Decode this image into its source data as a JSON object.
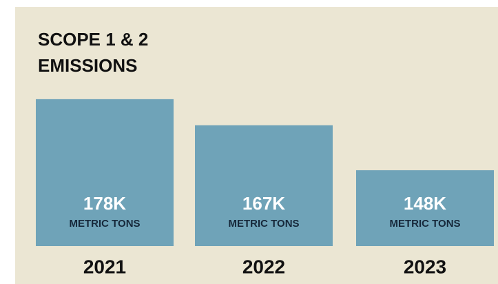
{
  "chart_data": {
    "type": "bar",
    "title": "SCOPE 1 & 2 EMISSIONS",
    "categories": [
      "2021",
      "2022",
      "2023"
    ],
    "values": [
      178000,
      167000,
      148000
    ],
    "value_labels": [
      "178K",
      "167K",
      "148K"
    ],
    "unit_label": "METRIC TONS",
    "color": "#6fa3b8",
    "ylim": [
      116000,
      180000
    ]
  }
}
